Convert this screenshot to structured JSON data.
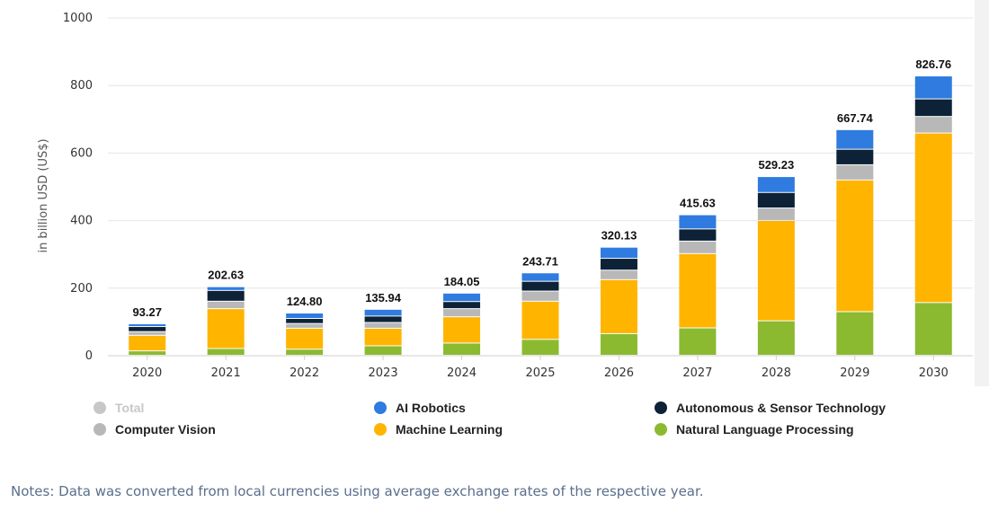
{
  "chart_data": {
    "type": "bar",
    "stacked": true,
    "ylabel": "in billion USD (US$)",
    "ylim": [
      0,
      1000
    ],
    "yticks": [
      0,
      200,
      400,
      600,
      800,
      1000
    ],
    "grid": true,
    "categories": [
      "2020",
      "2021",
      "2022",
      "2023",
      "2024",
      "2025",
      "2026",
      "2027",
      "2028",
      "2029",
      "2030"
    ],
    "totals_labels": [
      "93.27",
      "202.63",
      "124.80",
      "135.94",
      "184.05",
      "243.71",
      "320.13",
      "415.63",
      "529.23",
      "667.74",
      "826.76"
    ],
    "series": [
      {
        "name": "Natural Language Processing",
        "color": "#8bba30",
        "values": [
          13,
          20,
          18,
          28,
          36,
          47,
          64,
          81,
          102,
          129,
          156
        ]
      },
      {
        "name": "Machine Learning",
        "color": "#ffb400",
        "values": [
          46,
          118,
          62,
          52,
          78,
          113,
          160,
          220,
          297,
          390,
          502
        ]
      },
      {
        "name": "Computer Vision",
        "color": "#b8b8b8",
        "values": [
          11,
          22,
          14,
          17,
          24,
          30,
          28,
          37,
          37,
          45,
          49
        ]
      },
      {
        "name": "Autonomous & Sensor Technology",
        "color": "#0d2237",
        "values": [
          15,
          32,
          15,
          19,
          21,
          29,
          35,
          36,
          46,
          46,
          52
        ]
      },
      {
        "name": "AI Robotics",
        "color": "#2f7be0",
        "values": [
          8,
          11,
          16,
          20,
          25,
          25,
          33,
          42,
          47,
          58,
          68
        ]
      }
    ]
  },
  "legend": [
    {
      "name": "Total",
      "color": "#c7c7c7",
      "faded": true
    },
    {
      "name": "Computer Vision",
      "color": "#b8b8b8",
      "faded": false
    },
    {
      "name": "AI Robotics",
      "color": "#2f7be0",
      "faded": false
    },
    {
      "name": "Machine Learning",
      "color": "#ffb400",
      "faded": false
    },
    {
      "name": "Autonomous & Sensor Technology",
      "color": "#0d2237",
      "faded": false
    },
    {
      "name": "Natural Language Processing",
      "color": "#8bba30",
      "faded": false
    }
  ],
  "notes": "Notes: Data was converted from local currencies using average exchange rates of the respective year."
}
